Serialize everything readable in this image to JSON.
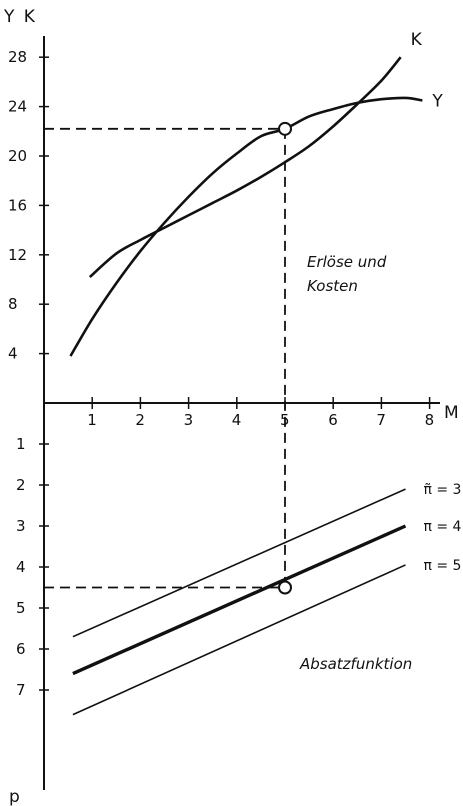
{
  "chart_data": [
    {
      "type": "line",
      "axis_label_y": "Y K",
      "axis_label_x": "M",
      "annotation": "Erlöse und Kosten",
      "x_ticks": [
        1,
        2,
        3,
        4,
        5,
        6,
        7,
        8
      ],
      "y_ticks": [
        4,
        8,
        12,
        16,
        20,
        24,
        28
      ],
      "xlim": [
        0,
        8.6
      ],
      "ylim": [
        0,
        30
      ],
      "series": [
        {
          "name": "K",
          "x": [
            0.95,
            1.5,
            2.0,
            2.5,
            3.0,
            3.5,
            4.0,
            4.5,
            5.0,
            5.5,
            6.0,
            6.5,
            7.0,
            7.4
          ],
          "y": [
            10.2,
            12.1,
            13.2,
            14.2,
            15.2,
            16.2,
            17.2,
            18.3,
            19.5,
            20.8,
            22.4,
            24.2,
            26.1,
            28.0
          ]
        },
        {
          "name": "Y",
          "x": [
            0.55,
            1.0,
            1.5,
            2.0,
            2.5,
            3.0,
            3.5,
            4.0,
            4.5,
            5.0,
            5.5,
            6.0,
            6.5,
            7.0,
            7.5,
            7.85
          ],
          "y": [
            3.8,
            6.8,
            9.7,
            12.3,
            14.6,
            16.7,
            18.6,
            20.2,
            21.6,
            22.2,
            23.2,
            23.8,
            24.3,
            24.6,
            24.7,
            24.5
          ]
        }
      ],
      "marked_point": {
        "x": 5,
        "y": 22.2
      }
    },
    {
      "type": "line",
      "axis_label_y": "p",
      "annotation": "Absatzfunktion",
      "y_ticks": [
        1,
        2,
        3,
        4,
        5,
        6,
        7
      ],
      "xlim": [
        0,
        8.6
      ],
      "ylim": [
        0,
        8
      ],
      "y_inverted": true,
      "series": [
        {
          "name": "π = 3",
          "label": "π̃ = 3",
          "x": [
            0.6,
            7.5
          ],
          "y": [
            5.7,
            2.1
          ],
          "bold": false
        },
        {
          "name": "π = 4",
          "label": "π = 4",
          "x": [
            0.6,
            7.5
          ],
          "y": [
            6.6,
            3.0
          ],
          "bold": true
        },
        {
          "name": "π = 5",
          "label": "π = 5",
          "x": [
            0.6,
            7.5
          ],
          "y": [
            7.6,
            3.95
          ],
          "bold": false
        }
      ],
      "marked_point": {
        "x": 5,
        "y": 4.5
      }
    }
  ]
}
